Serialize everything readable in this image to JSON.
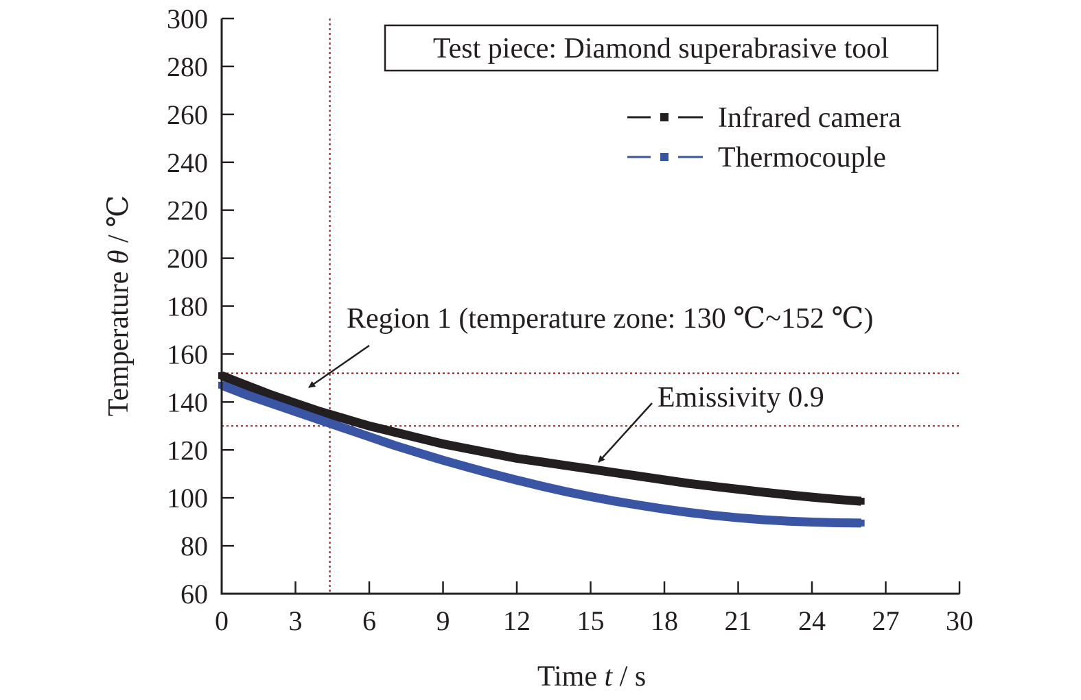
{
  "chart_data": {
    "type": "line",
    "title": "",
    "note": "Test piece: Diamond superabrasive tool",
    "xlabel_prefix": "Time ",
    "xlabel_var": "t",
    "xlabel_unit": " / s",
    "ylabel_prefix": "Temperature ",
    "ylabel_var": "θ",
    "ylabel_unit": " / ℃",
    "xlim": [
      0,
      30
    ],
    "ylim": [
      60,
      300
    ],
    "xticks": [
      0,
      3,
      6,
      9,
      12,
      15,
      18,
      21,
      24,
      27,
      30
    ],
    "yticks": [
      60,
      80,
      100,
      120,
      140,
      160,
      180,
      200,
      220,
      240,
      260,
      280,
      300
    ],
    "grid": false,
    "legend_position": "top-right",
    "series": [
      {
        "name": "Infrared camera",
        "color": "#231f20",
        "x": [
          0,
          1,
          2,
          3,
          4,
          5,
          6,
          7,
          8,
          9,
          10,
          11,
          12,
          13,
          14,
          15,
          16,
          17,
          18,
          19,
          20,
          21,
          22,
          23,
          24,
          25,
          26
        ],
        "y": [
          151,
          147,
          143,
          139.5,
          136,
          133,
          130,
          127.5,
          125,
          122.5,
          120.5,
          118.5,
          116.5,
          115,
          113.5,
          112,
          110.5,
          109,
          107.5,
          106,
          104.8,
          103.6,
          102.4,
          101.3,
          100.3,
          99.4,
          98.6
        ]
      },
      {
        "name": "Thermocouple",
        "color": "#3a55a4",
        "x": [
          0,
          1,
          2,
          3,
          4,
          5,
          6,
          7,
          8,
          9,
          10,
          11,
          12,
          13,
          14,
          15,
          16,
          17,
          18,
          19,
          20,
          21,
          22,
          23,
          24,
          25,
          26
        ],
        "y": [
          147,
          143,
          139.5,
          136,
          132.5,
          129,
          125.5,
          122,
          118.8,
          115.7,
          112.8,
          110,
          107.4,
          104.9,
          102.6,
          100.5,
          98.6,
          96.9,
          95.3,
          93.9,
          92.7,
          91.7,
          90.9,
          90.3,
          89.9,
          89.6,
          89.5
        ]
      }
    ],
    "reference_lines": {
      "vertical_x": 4.4,
      "horizontal_y": [
        152,
        130
      ],
      "color": "#8b1a1a"
    },
    "annotations": {
      "region": "Region 1 (temperature zone: 130 ℃~152 ℃)",
      "emissivity": "Emissivity 0.9"
    }
  }
}
